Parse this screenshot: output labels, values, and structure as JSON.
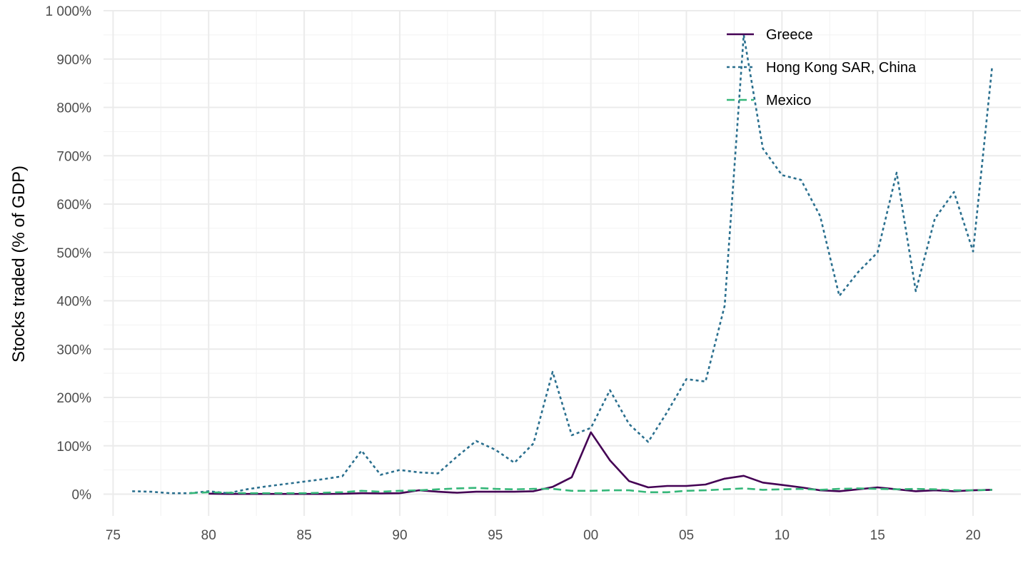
{
  "chart_data": {
    "type": "line",
    "title": "",
    "xlabel": "",
    "ylabel": "Stocks traded (% of GDP)",
    "xlim": [
      1974.5,
      2022.5
    ],
    "ylim": [
      -45,
      1000
    ],
    "x_ticks": [
      1975,
      1980,
      1985,
      1990,
      1995,
      2000,
      2005,
      2010,
      2015,
      2020
    ],
    "x_tick_labels": [
      "75",
      "80",
      "85",
      "90",
      "95",
      "00",
      "05",
      "10",
      "15",
      "20"
    ],
    "y_ticks": [
      0,
      100,
      200,
      300,
      400,
      500,
      600,
      700,
      800,
      900,
      1000
    ],
    "y_tick_labels": [
      "0%",
      "100%",
      "200%",
      "300%",
      "400%",
      "500%",
      "600%",
      "700%",
      "800%",
      "900%",
      "1 000%"
    ],
    "grid": true,
    "legend_position": "top-right",
    "series": [
      {
        "name": "Greece",
        "color": "#440154",
        "dash": "solid",
        "x": [
          1980,
          1981,
          1982,
          1983,
          1984,
          1985,
          1986,
          1987,
          1988,
          1989,
          1990,
          1991,
          1992,
          1993,
          1994,
          1995,
          1996,
          1997,
          1998,
          1999,
          2000,
          2001,
          2002,
          2003,
          2004,
          2005,
          2006,
          2007,
          2008,
          2009,
          2010,
          2011,
          2012,
          2013,
          2014,
          2015,
          2016,
          2017,
          2018,
          2019,
          2020,
          2021
        ],
        "values": [
          1,
          0.5,
          0.5,
          0.5,
          0.5,
          0.5,
          0.5,
          0.8,
          2,
          1.5,
          2,
          8,
          5,
          3,
          5,
          5,
          5,
          6,
          15,
          35,
          128,
          70,
          27,
          14,
          17,
          17,
          20,
          32,
          38,
          24,
          19,
          14,
          8,
          6,
          10,
          14,
          10,
          6,
          8,
          6,
          8,
          9
        ]
      },
      {
        "name": "Hong Kong SAR, China",
        "color": "#2a6f8e",
        "dash": "dotted",
        "x": [
          1976,
          1977,
          1978,
          1979,
          1980,
          1981,
          1982,
          1983,
          1984,
          1985,
          1986,
          1987,
          1988,
          1989,
          1990,
          1991,
          1992,
          1993,
          1994,
          1995,
          1996,
          1997,
          1998,
          1999,
          2000,
          2001,
          2002,
          2003,
          2004,
          2005,
          2006,
          2007,
          2008,
          2009,
          2010,
          2011,
          2012,
          2013,
          2014,
          2015,
          2016,
          2017,
          2018,
          2019,
          2020,
          2021
        ],
        "values": [
          6,
          5,
          2,
          2,
          6,
          2,
          10,
          16,
          21,
          26,
          31,
          37,
          90,
          40,
          50,
          45,
          43,
          78,
          110,
          92,
          65,
          105,
          253,
          122,
          137,
          215,
          145,
          108,
          170,
          238,
          233,
          390,
          950,
          715,
          660,
          650,
          575,
          410,
          460,
          500,
          665,
          420,
          570,
          625,
          502,
          885
        ]
      },
      {
        "name": "Mexico",
        "color": "#35b779",
        "dash": "dashed",
        "x": [
          1979,
          1980,
          1981,
          1982,
          1983,
          1984,
          1985,
          1986,
          1987,
          1988,
          1989,
          1990,
          1991,
          1992,
          1993,
          1994,
          1995,
          1996,
          1997,
          1998,
          1999,
          2000,
          2001,
          2002,
          2003,
          2004,
          2005,
          2006,
          2007,
          2008,
          2009,
          2010,
          2011,
          2012,
          2013,
          2014,
          2015,
          2016,
          2017,
          2018,
          2019,
          2020,
          2021
        ],
        "values": [
          2,
          4,
          3,
          2,
          2,
          2,
          2,
          3,
          4,
          7,
          5,
          7,
          8,
          10,
          12,
          13,
          11,
          10,
          11,
          11,
          7,
          7,
          8,
          8,
          4,
          4,
          7,
          8,
          10,
          12,
          9,
          10,
          11,
          9,
          11,
          12,
          11,
          10,
          11,
          10,
          8,
          8,
          9
        ]
      }
    ]
  }
}
